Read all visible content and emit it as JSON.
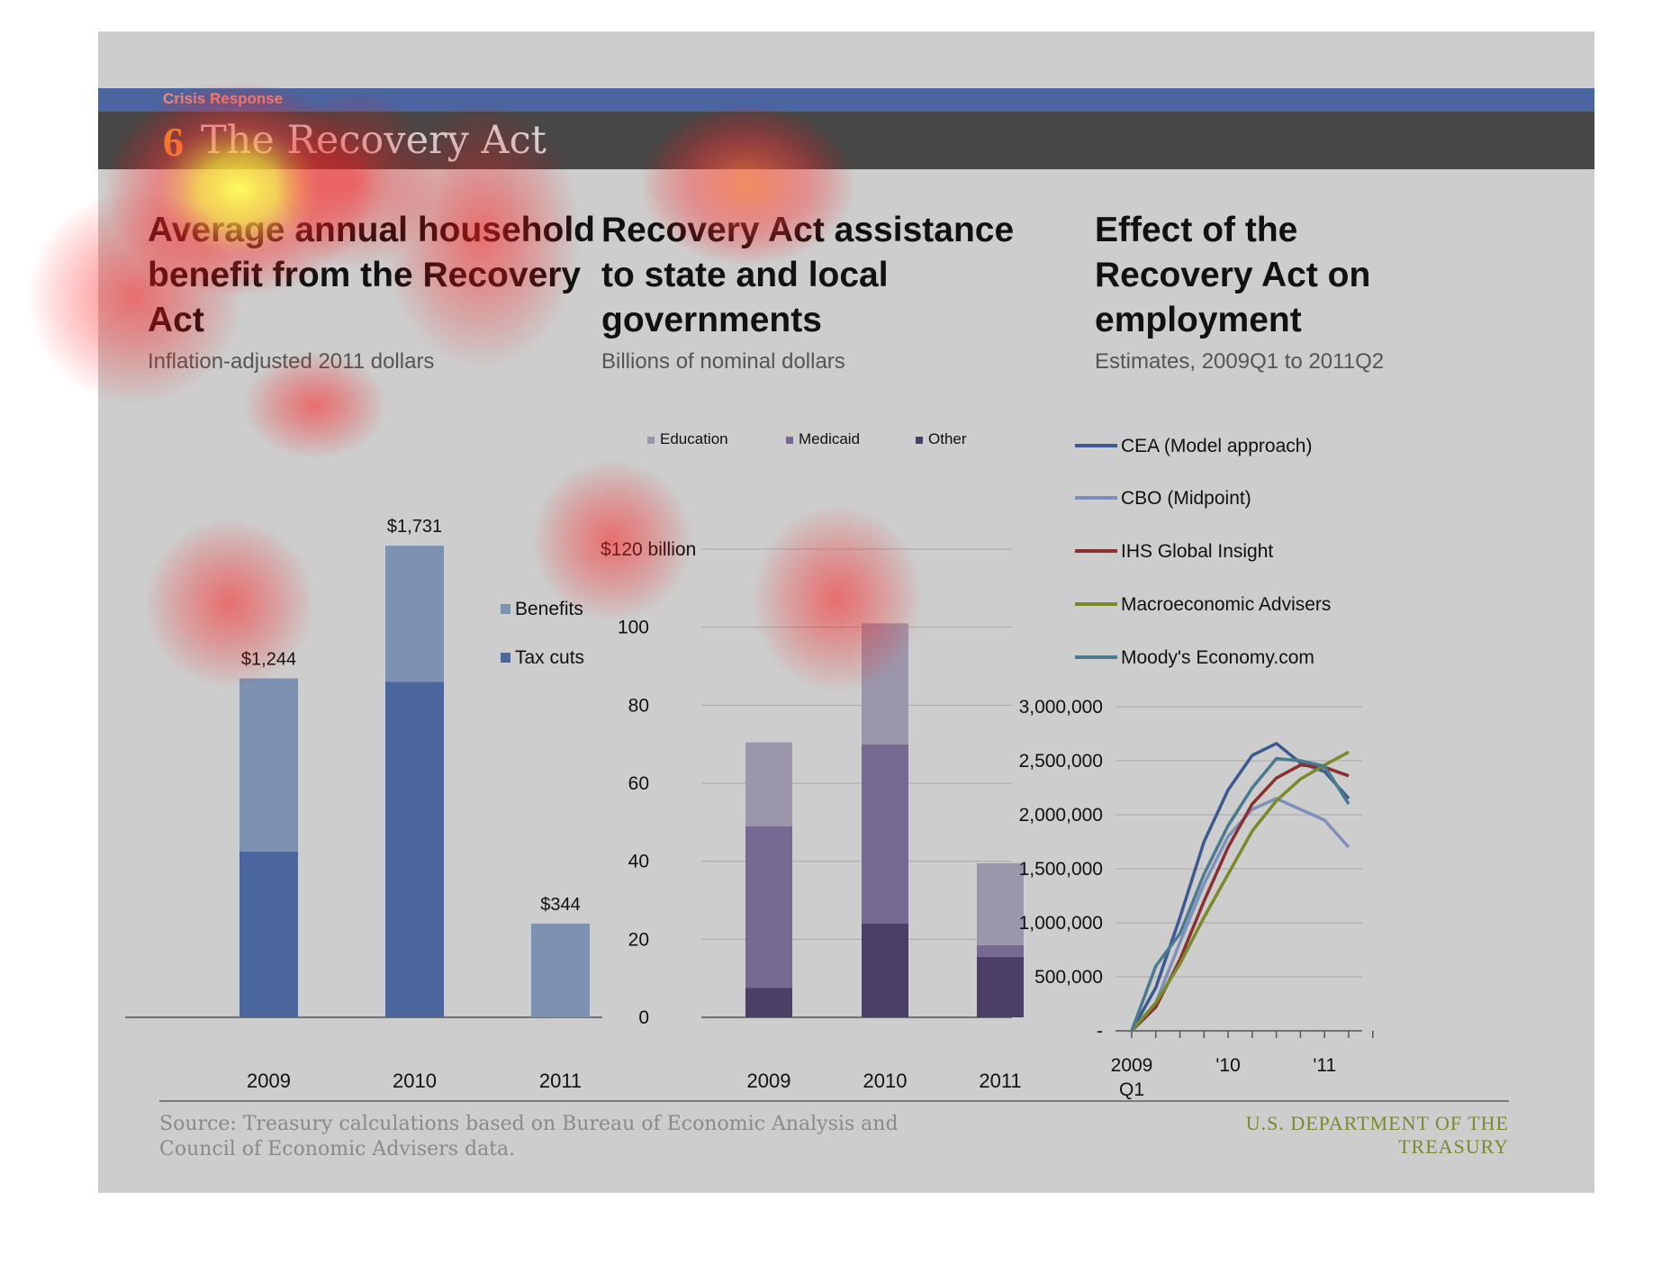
{
  "header": {
    "section": "Crisis Response",
    "number": "6",
    "title": "The Recovery Act"
  },
  "panels": [
    {
      "title": "Average annual household benefit from the Recovery Act",
      "subtitle": "Inflation-adjusted 2011 dollars"
    },
    {
      "title": "Recovery Act assistance to state and local governments",
      "subtitle": "Billions of nominal dollars"
    },
    {
      "title": "Effect of the Recovery Act on employment",
      "subtitle": "Estimates, 2009Q1 to 2011Q2"
    }
  ],
  "footer": {
    "source": "Source: Treasury calculations based on Bureau of Economic Analysis and Council of Economic Advisers data.",
    "department": "U.S. DEPARTMENT OF THE TREASURY"
  },
  "chart_data": [
    {
      "type": "bar",
      "stacked": true,
      "categories": [
        "2009",
        "2010",
        "2011"
      ],
      "series": [
        {
          "name": "Tax cuts",
          "values": [
            608,
            1231,
            0
          ],
          "color": "#4b669c"
        },
        {
          "name": "Benefits",
          "values": [
            636,
            500,
            344
          ],
          "color": "#7d91b1"
        }
      ],
      "totals": [
        "$1,244",
        "$1,731",
        "$344"
      ],
      "ylim": [
        0,
        1900
      ],
      "legend": "right"
    },
    {
      "type": "bar",
      "stacked": true,
      "categories": [
        "2009",
        "2010",
        "2011"
      ],
      "series": [
        {
          "name": "Other",
          "values": [
            7.5,
            24,
            15.5
          ],
          "color": "#4b3f66"
        },
        {
          "name": "Medicaid",
          "values": [
            41.5,
            46,
            3
          ],
          "color": "#766a92"
        },
        {
          "name": "Education",
          "values": [
            21.5,
            31,
            21
          ],
          "color": "#9c96ab"
        }
      ],
      "yticks": [
        "$120 billion",
        "100",
        "80",
        "60",
        "40",
        "20",
        "0"
      ],
      "ylim": [
        0,
        120
      ],
      "legend": "top",
      "grid": true
    },
    {
      "type": "line",
      "x": [
        "2009Q1",
        "2009Q2",
        "2009Q3",
        "2009Q4",
        "2010Q1",
        "2010Q2",
        "2010Q3",
        "2010Q4",
        "2011Q1",
        "2011Q2"
      ],
      "xtick_labels": [
        "2009",
        "Q1",
        "'10",
        "'11"
      ],
      "yticks": [
        "3,000,000",
        "2,500,000",
        "2,000,000",
        "1,500,000",
        "1,000,000",
        "500,000",
        "-"
      ],
      "ylim": [
        0,
        3000000
      ],
      "legend": "top",
      "grid": true,
      "series": [
        {
          "name": "CEA (Model approach)",
          "color": "#3c5a8f",
          "values": [
            0,
            400000,
            1050000,
            1750000,
            2230000,
            2550000,
            2660000,
            2480000,
            2400000,
            2150000
          ]
        },
        {
          "name": "CBO (Midpoint)",
          "color": "#7d8fbb",
          "values": [
            0,
            260000,
            820000,
            1360000,
            1800000,
            2050000,
            2150000,
            2050000,
            1950000,
            1700000
          ]
        },
        {
          "name": "IHS Global Insight",
          "color": "#8a3030",
          "values": [
            0,
            220000,
            660000,
            1200000,
            1700000,
            2100000,
            2340000,
            2460000,
            2440000,
            2360000
          ]
        },
        {
          "name": "Macroeconomic Advisers",
          "color": "#7a8a2a",
          "values": [
            0,
            260000,
            620000,
            1050000,
            1450000,
            1850000,
            2130000,
            2330000,
            2460000,
            2580000
          ]
        },
        {
          "name": "Moody's Economy.com",
          "color": "#4a7a90",
          "values": [
            0,
            600000,
            900000,
            1450000,
            1900000,
            2250000,
            2520000,
            2500000,
            2450000,
            2100000
          ]
        }
      ]
    }
  ]
}
